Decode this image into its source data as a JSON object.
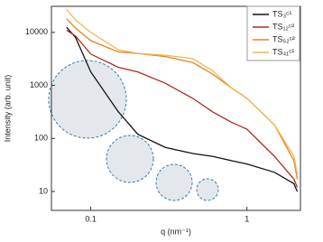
{
  "chart_data": {
    "type": "line",
    "xlabel": "q (nm⁻¹)",
    "ylabel": "Intensity (arb. unit)",
    "xscale": "log",
    "yscale": "log",
    "xlim": [
      0.056,
      2.2
    ],
    "ylim": [
      4.4,
      31000
    ],
    "xticks": [
      0.1,
      1
    ],
    "yticks": [
      10,
      100,
      1000,
      10000
    ],
    "legend": "upper right",
    "x": [
      0.07,
      0.08,
      0.1,
      0.15,
      0.2,
      0.3,
      0.45,
      0.6,
      0.8,
      1,
      1.5,
      2,
      2.1
    ],
    "series": [
      {
        "name": "TS₃ᶜ¹",
        "color": "#111111",
        "values": [
          12500,
          8000,
          1800,
          320,
          120,
          68,
          52,
          46,
          38,
          33,
          23,
          14,
          10
        ]
      },
      {
        "name": "TS₁₂ᶜ²",
        "color": "#b22a1c",
        "values": [
          11000,
          8500,
          3900,
          2200,
          1800,
          1100,
          570,
          320,
          200,
          150,
          46,
          17,
          12
        ]
      },
      {
        "name": "TS₅₂ᶜ²",
        "color": "#e0861c",
        "values": [
          18000,
          12000,
          7000,
          4300,
          4000,
          3500,
          2700,
          1650,
          890,
          570,
          180,
          38,
          17
        ]
      },
      {
        "name": "TS₄₁ᶜ¹",
        "color": "#f2b656",
        "values": [
          27000,
          17000,
          10000,
          4700,
          4000,
          3700,
          3200,
          1900,
          890,
          570,
          180,
          46,
          21
        ]
      }
    ]
  }
}
